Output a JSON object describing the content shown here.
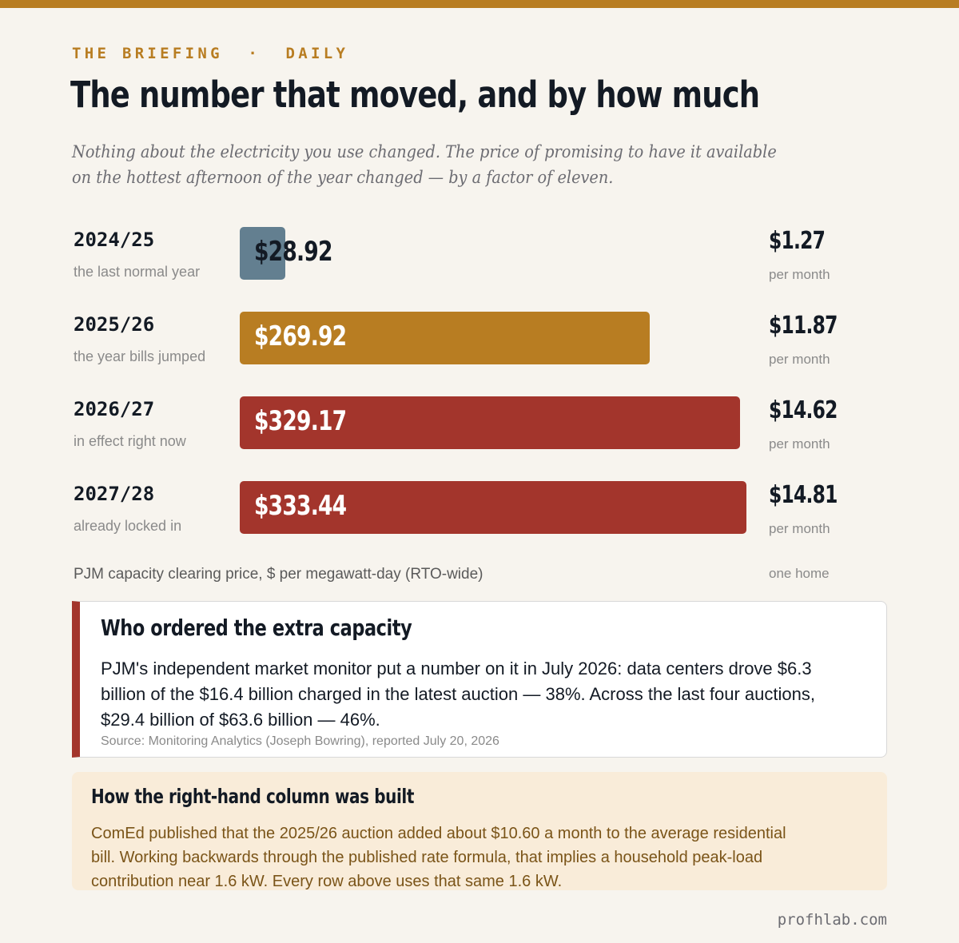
{
  "header": {
    "kicker": "THE BRIEFING  ·  DAILY",
    "title": "The number that moved, and by how much",
    "subtitle": "Nothing about the electricity you use changed. The price of promising to have it available on the hottest afternoon of the year changed — by a factor of eleven."
  },
  "chart_data": {
    "type": "bar",
    "orientation": "horizontal",
    "categories": [
      "2024/25",
      "2025/26",
      "2026/27",
      "2027/28"
    ],
    "category_notes": [
      "the last normal year",
      "the year bills jumped",
      "in effect right now",
      "already locked in"
    ],
    "values": [
      28.92,
      269.92,
      329.17,
      333.44
    ],
    "value_labels": [
      "$28.92",
      "$269.92",
      "$329.17",
      "$333.44"
    ],
    "colors": [
      "#637f90",
      "#b87d22",
      "#a3352c",
      "#a3352c"
    ],
    "label_colors": [
      "#131a24",
      "#ffffff",
      "#ffffff",
      "#ffffff"
    ],
    "monthly_values": [
      "$1.27",
      "$11.87",
      "$14.62",
      "$14.81"
    ],
    "monthly_unit": "per month",
    "xlabel": "PJM capacity clearing price, $ per megawatt-day (RTO-wide)",
    "monthly_column_label": "one home",
    "xlim": [
      0,
      337
    ]
  },
  "card_capacity": {
    "title": "Who ordered the extra capacity",
    "body": "PJM's independent market monitor put a number on it in July 2026: data centers drove $6.3 billion of the $16.4 billion charged in the latest auction — 38%. Across the last four auctions, $29.4 billion of $63.6 billion — 46%.",
    "source": "Source: Monitoring Analytics (Joseph Bowring), reported July 20, 2026"
  },
  "card_method": {
    "title": "How the right-hand column was built",
    "body": "ComEd published that the 2025/26 auction added about $10.60 a month to the average residential bill. Working backwards through the published rate formula, that implies a household peak-load contribution near 1.6 kW. Every row above uses that same 1.6 kW."
  },
  "footer": {
    "site": "profhlab.com"
  },
  "colors": {
    "accent": "#b87d22",
    "alert": "#a3352c",
    "muted_bar": "#637f90",
    "ink": "#131a24"
  }
}
